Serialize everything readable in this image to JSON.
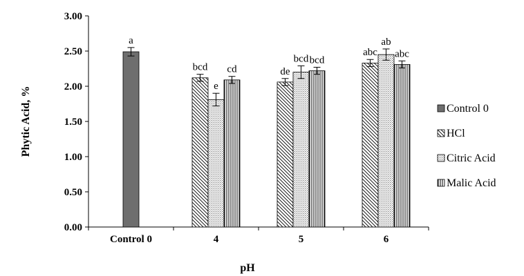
{
  "chart_data": {
    "type": "bar",
    "title": "",
    "xlabel": "pH",
    "ylabel": "Phytic Acid, %",
    "ylim": [
      0,
      3
    ],
    "yticks": [
      "0.00",
      "0.50",
      "1.00",
      "1.50",
      "2.00",
      "2.50",
      "3.00"
    ],
    "grid": false,
    "legend_position": "right",
    "groups": [
      {
        "label": "Control 0",
        "bars": [
          {
            "series": "Control 0",
            "value": 2.49,
            "error": 0.06,
            "letter": "a"
          }
        ]
      },
      {
        "label": "4",
        "bars": [
          {
            "series": "HCl",
            "value": 2.12,
            "error": 0.05,
            "letter": "bcd"
          },
          {
            "series": "Citric Acid",
            "value": 1.81,
            "error": 0.09,
            "letter": "e"
          },
          {
            "series": "Malic Acid",
            "value": 2.09,
            "error": 0.05,
            "letter": "cd"
          }
        ]
      },
      {
        "label": "5",
        "bars": [
          {
            "series": "HCl",
            "value": 2.06,
            "error": 0.05,
            "letter": "de"
          },
          {
            "series": "Citric Acid",
            "value": 2.2,
            "error": 0.09,
            "letter": "bcd"
          },
          {
            "series": "Malic Acid",
            "value": 2.22,
            "error": 0.05,
            "letter": "bcd"
          }
        ]
      },
      {
        "label": "6",
        "bars": [
          {
            "series": "HCl",
            "value": 2.33,
            "error": 0.05,
            "letter": "abc"
          },
          {
            "series": "Citric Acid",
            "value": 2.45,
            "error": 0.08,
            "letter": "ab"
          },
          {
            "series": "Malic Acid",
            "value": 2.31,
            "error": 0.05,
            "letter": "abc"
          }
        ]
      }
    ],
    "legend": [
      {
        "name": "Control 0",
        "pattern": "solid"
      },
      {
        "name": "HCl",
        "pattern": "diagonal"
      },
      {
        "name": "Citric Acid",
        "pattern": "dots"
      },
      {
        "name": "Malic Acid",
        "pattern": "vertical"
      }
    ],
    "colors": {
      "control_fill": "#6e6e6e",
      "ink": "#000000"
    }
  }
}
